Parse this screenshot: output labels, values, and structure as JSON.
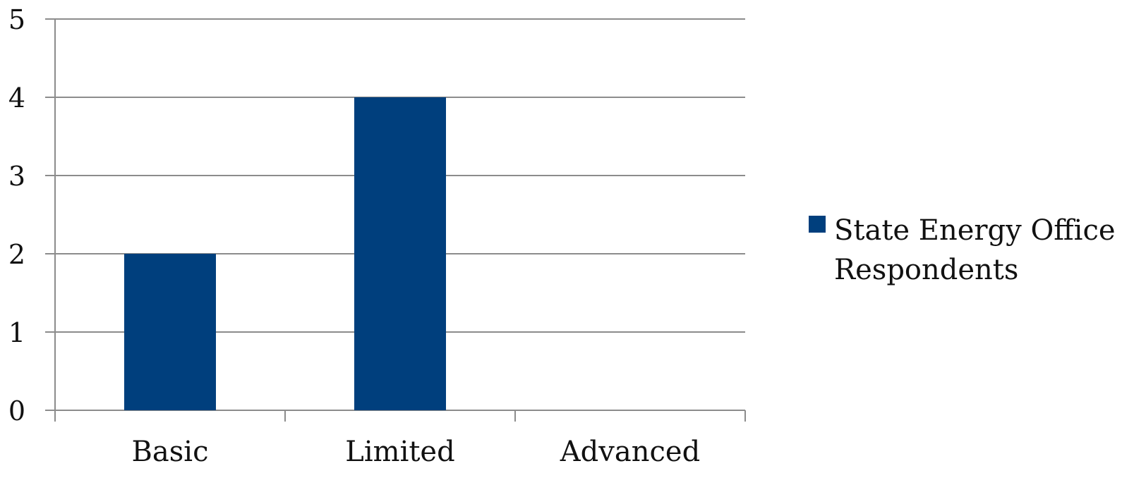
{
  "chart_data": {
    "type": "bar",
    "title": "",
    "xlabel": "",
    "ylabel": "",
    "categories": [
      "Basic",
      "Limited",
      "Advanced"
    ],
    "series": [
      {
        "name": "State Energy Office Respondents",
        "values": [
          2,
          4,
          0
        ],
        "color": "#003f7d"
      }
    ],
    "ylim": [
      0,
      5
    ],
    "yticks": [
      "0",
      "1",
      "2",
      "3",
      "4",
      "5"
    ],
    "grid": true,
    "legend_position": "right"
  }
}
